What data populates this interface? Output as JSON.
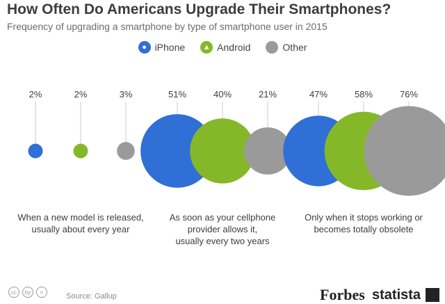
{
  "header": {
    "title": "How Often Do Americans Upgrade Their Smartphones?",
    "subtitle": "Frequency of upgrading a smartphone by type of smartphone user in 2015"
  },
  "legend": [
    {
      "label": "iPhone",
      "color": "#2f6fd6",
      "icon": "apple-icon"
    },
    {
      "label": "Android",
      "color": "#85b828",
      "icon": "android-icon"
    },
    {
      "label": "Other",
      "color": "#9a9a9a",
      "icon": "none"
    }
  ],
  "chart_data": {
    "type": "bubble",
    "title": "How Often Do Americans Upgrade Their Smartphones?",
    "subtitle": "Frequency of upgrading a smartphone by type of smartphone user in 2015",
    "unit": "%",
    "series": [
      {
        "name": "iPhone",
        "color": "#2f6fd6",
        "values": [
          2,
          51,
          47
        ]
      },
      {
        "name": "Android",
        "color": "#85b828",
        "values": [
          2,
          40,
          58
        ]
      },
      {
        "name": "Other",
        "color": "#9a9a9a",
        "values": [
          3,
          21,
          76
        ]
      }
    ],
    "categories": [
      {
        "lines": [
          "When a new model is released,",
          "usually about every year"
        ]
      },
      {
        "lines": [
          "As soon as your cellphone",
          "provider allows it,",
          "usually every two years"
        ]
      },
      {
        "lines": [
          "Only when it stops working or",
          "becomes totally obsolete"
        ]
      }
    ]
  },
  "footer": {
    "cc_icons": [
      "cc",
      "by",
      "="
    ],
    "source": "Source: Gallup",
    "brand_forbes": "Forbes",
    "brand_statista": "statista"
  }
}
